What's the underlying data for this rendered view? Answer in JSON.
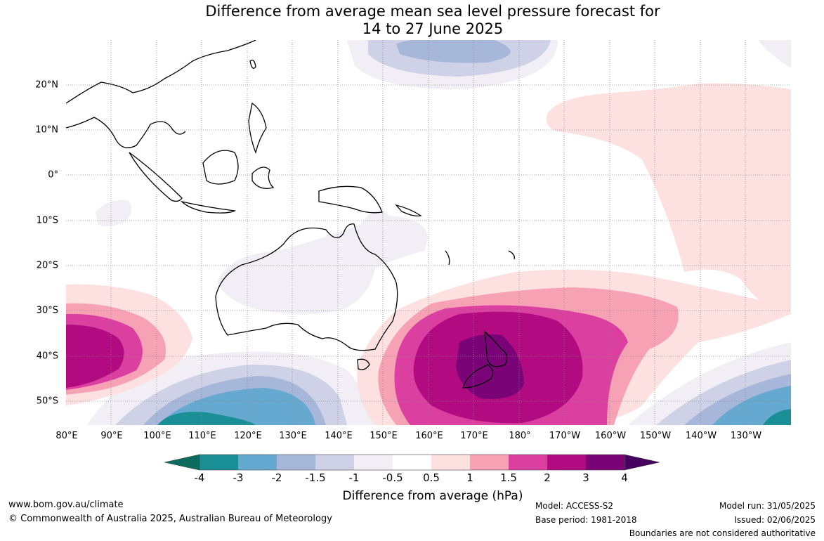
{
  "title_line1": "Difference from average mean sea level pressure forecast for",
  "title_line2": "14 to 27 June 2025",
  "lat_labels": [
    "20°N",
    "10°N",
    "0°",
    "10°S",
    "20°S",
    "30°S",
    "40°S",
    "50°S"
  ],
  "lon_labels": [
    "80°E",
    "90°E",
    "100°E",
    "110°E",
    "120°E",
    "130°E",
    "140°E",
    "150°E",
    "160°E",
    "170°E",
    "180°",
    "170°W",
    "160°W",
    "150°W",
    "140°W",
    "130°W"
  ],
  "colorbar": {
    "ticks": [
      "-4",
      "-3",
      "-2",
      "-1.5",
      "-1",
      "-0.5",
      "0.5",
      "1",
      "1.5",
      "2",
      "3",
      "4"
    ],
    "colors": [
      "#0b6b5c",
      "#1a8f96",
      "#65a9d1",
      "#a7b7da",
      "#cfd2e6",
      "#f2eef5",
      "#ffffff",
      "#fde0e0",
      "#f7a1b5",
      "#db3fa0",
      "#b20b82",
      "#7a0477",
      "#480060"
    ],
    "title": "Difference from average (hPa)"
  },
  "footer": {
    "website": "www.bom.gov.au/climate",
    "copyright": "© Commonwealth of Australia 2025, Australian Bureau of Meteorology",
    "model": "Model: ACCESS-S2",
    "base_period": "Base period: 1981-2018",
    "model_run": "Model run: 31/05/2025",
    "issued": "Issued: 02/06/2025",
    "disclaimer": "Boundaries are not considered authoritative"
  }
}
